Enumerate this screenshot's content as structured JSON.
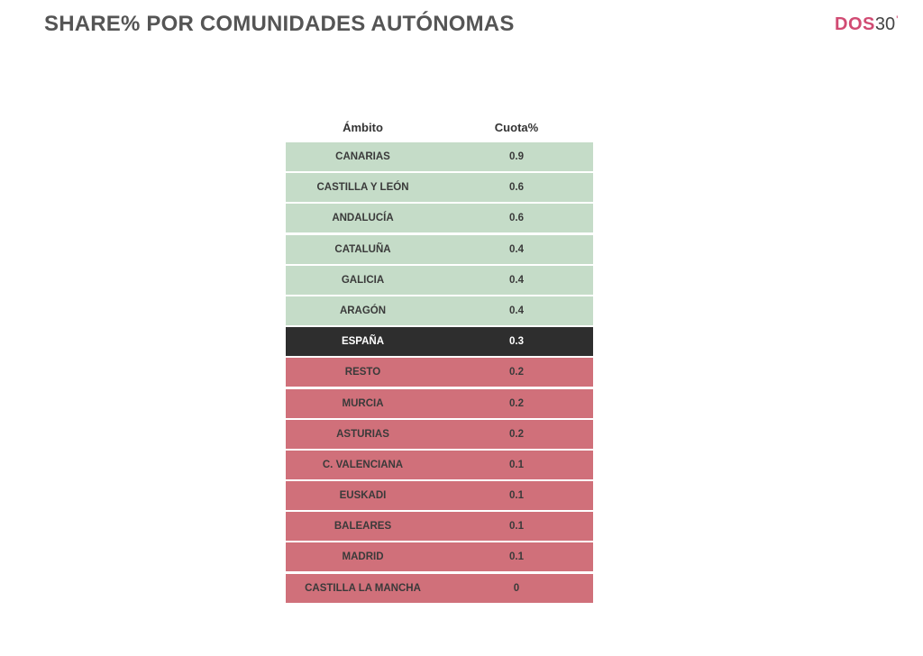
{
  "title": "SHARE% POR COMUNIDADES AUTÓNOMAS",
  "logo": {
    "brand": "DOS",
    "number": "30",
    "tick": "'"
  },
  "table": {
    "headers": [
      "Ámbito",
      "Cuota%"
    ],
    "rows": [
      {
        "ambito": "CANARIAS",
        "cuota": "0.9",
        "group": "good"
      },
      {
        "ambito": "CASTILLA Y LEÓN",
        "cuota": "0.6",
        "group": "good"
      },
      {
        "ambito": "ANDALUCÍA",
        "cuota": "0.6",
        "group": "good"
      },
      {
        "ambito": "CATALUÑA",
        "cuota": "0.4",
        "group": "good"
      },
      {
        "ambito": "GALICIA",
        "cuota": "0.4",
        "group": "good"
      },
      {
        "ambito": "ARAGÓN",
        "cuota": "0.4",
        "group": "good"
      },
      {
        "ambito": "ESPAÑA",
        "cuota": "0.3",
        "group": "total"
      },
      {
        "ambito": "RESTO",
        "cuota": "0.2",
        "group": "bad"
      },
      {
        "ambito": "MURCIA",
        "cuota": "0.2",
        "group": "bad"
      },
      {
        "ambito": "ASTURIAS",
        "cuota": "0.2",
        "group": "bad"
      },
      {
        "ambito": "C. VALENCIANA",
        "cuota": "0.1",
        "group": "bad"
      },
      {
        "ambito": "EUSKADI",
        "cuota": "0.1",
        "group": "bad"
      },
      {
        "ambito": "BALEARES",
        "cuota": "0.1",
        "group": "bad"
      },
      {
        "ambito": "MADRID",
        "cuota": "0.1",
        "group": "bad"
      },
      {
        "ambito": "CASTILLA LA MANCHA",
        "cuota": "0",
        "group": "bad"
      }
    ]
  },
  "colors": {
    "above_average": "#c5dcc8",
    "total": "#2e2e2e",
    "below_average": "#d0707a",
    "brand": "#d14b73"
  }
}
